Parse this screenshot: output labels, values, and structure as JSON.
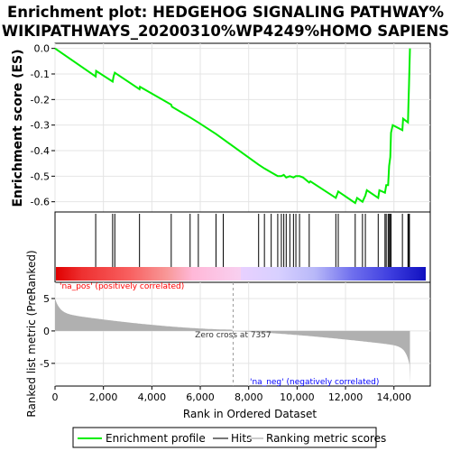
{
  "chart_data": {
    "type": "line",
    "title_line1": "Enrichment plot: HEDGEHOG SIGNALING PATHWAY%",
    "title_line2": "WIKIPATHWAYS_20200310%WP4249%HOMO SAPIENS",
    "es_panel": {
      "ylabel": "Enrichment score (ES)",
      "yticks": [
        "0.0",
        "-0.1",
        "-0.2",
        "-0.3",
        "-0.4",
        "-0.5",
        "-0.6"
      ],
      "ylim": [
        -0.64,
        0.02
      ],
      "xlim": [
        0,
        15500
      ],
      "grid": true,
      "line_color": "#00ee00",
      "points": [
        [
          0,
          0.0
        ],
        [
          1680,
          -0.11
        ],
        [
          1700,
          -0.088
        ],
        [
          2380,
          -0.13
        ],
        [
          2420,
          -0.11
        ],
        [
          2470,
          -0.095
        ],
        [
          3490,
          -0.16
        ],
        [
          3510,
          -0.15
        ],
        [
          4800,
          -0.22
        ],
        [
          4830,
          -0.228
        ],
        [
          5580,
          -0.27
        ],
        [
          5920,
          -0.29
        ],
        [
          6650,
          -0.335
        ],
        [
          6950,
          -0.355
        ],
        [
          8410,
          -0.455
        ],
        [
          8650,
          -0.47
        ],
        [
          8930,
          -0.485
        ],
        [
          9200,
          -0.5
        ],
        [
          9350,
          -0.5
        ],
        [
          9450,
          -0.495
        ],
        [
          9550,
          -0.505
        ],
        [
          9700,
          -0.5
        ],
        [
          9850,
          -0.505
        ],
        [
          9950,
          -0.5
        ],
        [
          10100,
          -0.5
        ],
        [
          10250,
          -0.505
        ],
        [
          10500,
          -0.525
        ],
        [
          10550,
          -0.52
        ],
        [
          11600,
          -0.585
        ],
        [
          11700,
          -0.56
        ],
        [
          12400,
          -0.605
        ],
        [
          12480,
          -0.585
        ],
        [
          12700,
          -0.6
        ],
        [
          12820,
          -0.575
        ],
        [
          12880,
          -0.555
        ],
        [
          13350,
          -0.585
        ],
        [
          13400,
          -0.555
        ],
        [
          13630,
          -0.565
        ],
        [
          13680,
          -0.535
        ],
        [
          13760,
          -0.535
        ],
        [
          13800,
          -0.46
        ],
        [
          13850,
          -0.425
        ],
        [
          13880,
          -0.33
        ],
        [
          13950,
          -0.3
        ],
        [
          14350,
          -0.32
        ],
        [
          14380,
          -0.275
        ],
        [
          14580,
          -0.29
        ],
        [
          14600,
          -0.22
        ],
        [
          14620,
          -0.15
        ],
        [
          14640,
          -0.08
        ],
        [
          14660,
          0.0
        ]
      ]
    },
    "hits_panel": {
      "hit_positions": [
        1680,
        2380,
        2470,
        3490,
        4800,
        5580,
        5920,
        6650,
        6950,
        8410,
        8650,
        8930,
        9200,
        9350,
        9450,
        9550,
        9700,
        9850,
        9950,
        10100,
        10500,
        11600,
        11700,
        12400,
        12700,
        12820,
        13350,
        13630,
        13680,
        13760,
        13800,
        13850,
        13880,
        14350,
        14580,
        14600,
        14620,
        14640
      ]
    },
    "rank_panel": {
      "ylabel": "Ranked list metric (PreRanked)",
      "xlabel": "Rank in Ordered Dataset",
      "yticks": [
        "5",
        "0",
        "-5"
      ],
      "xticks": [
        "0",
        "2,000",
        "4,000",
        "6,000",
        "8,000",
        "10,000",
        "12,000",
        "14,000"
      ],
      "ylim": [
        -8.5,
        7.5
      ],
      "n_genes": 14660,
      "zero_cross": 7357,
      "zero_cross_label": "Zero cross at 7357",
      "pos_label": "'na_pos' (positively correlated)",
      "neg_label": "'na_neg' (negatively correlated)",
      "pos_color": "#ff0000",
      "neg_color": "#0000ff",
      "fill_color": "#b0b0b0"
    },
    "legend": [
      "Enrichment profile",
      "Hits",
      "Ranking metric scores"
    ]
  }
}
